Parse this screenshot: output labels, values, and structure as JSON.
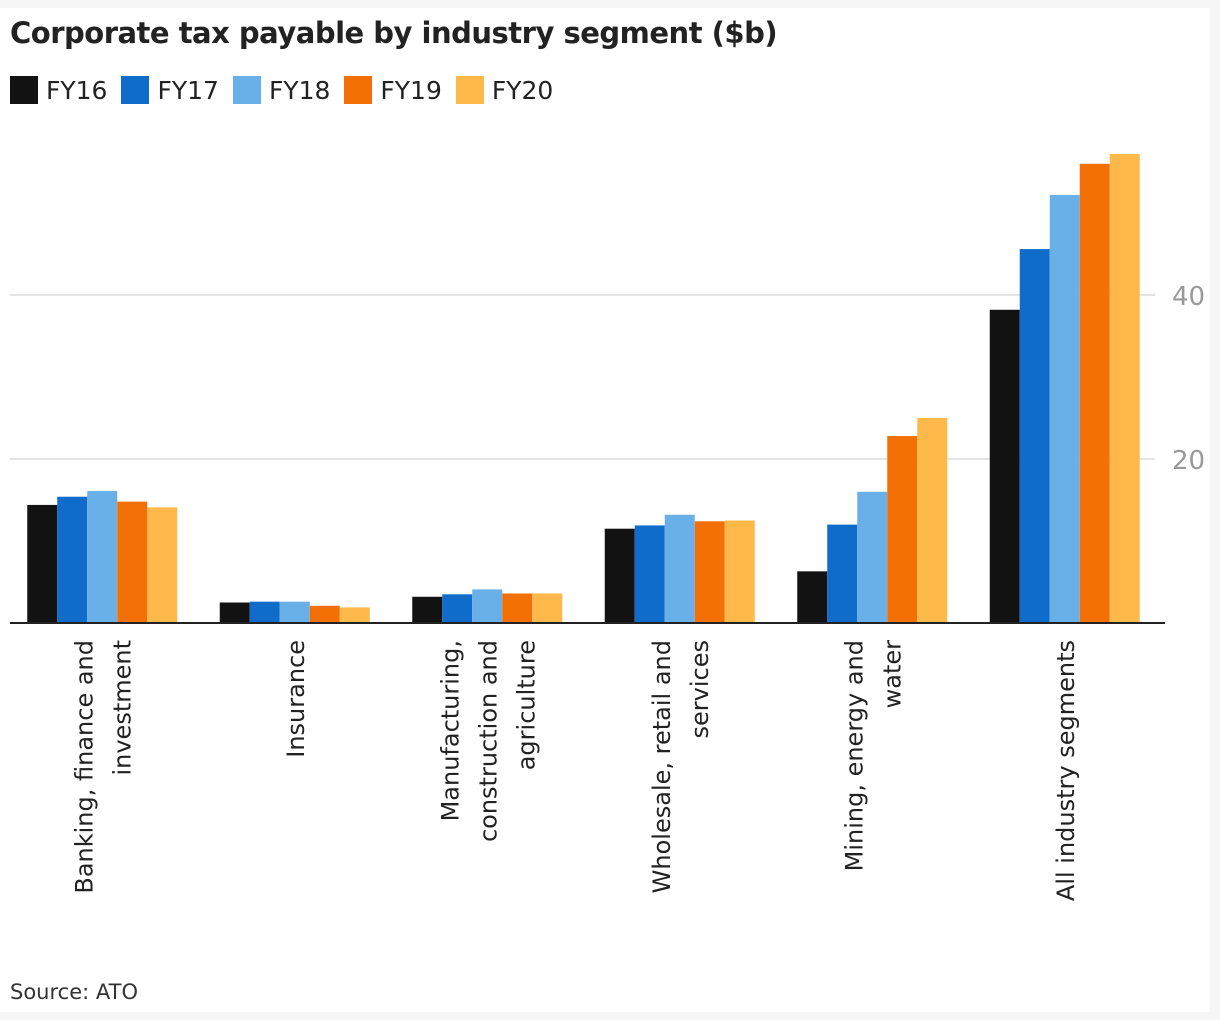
{
  "chart_data": {
    "type": "bar",
    "title": "Corporate tax payable by industry segment ($b)",
    "categories": [
      [
        "Banking, finance and",
        "investment"
      ],
      [
        "Insurance"
      ],
      [
        "Manufacturing,",
        "construction and",
        "agriculture"
      ],
      [
        "Wholesale, retail and",
        "services"
      ],
      [
        "Mining, energy and",
        "water"
      ],
      [
        "All industry segments"
      ]
    ],
    "series": [
      {
        "name": "FY16",
        "color": "#121212",
        "values": [
          14.4,
          2.5,
          3.2,
          11.5,
          6.3,
          38.2
        ]
      },
      {
        "name": "FY17",
        "color": "#0f6ccb",
        "values": [
          15.4,
          2.6,
          3.5,
          11.9,
          12.0,
          45.6
        ]
      },
      {
        "name": "FY18",
        "color": "#69b0e8",
        "values": [
          16.1,
          2.6,
          4.1,
          13.2,
          16.0,
          52.2
        ]
      },
      {
        "name": "FY19",
        "color": "#f27005",
        "values": [
          14.8,
          2.1,
          3.6,
          12.4,
          22.8,
          56.0
        ]
      },
      {
        "name": "FY20",
        "color": "#ffb84a",
        "values": [
          14.1,
          1.9,
          3.6,
          12.5,
          25.0,
          57.2
        ]
      }
    ],
    "yticks": [
      20,
      40
    ],
    "ylim": [
      0,
      60
    ],
    "grid": true,
    "legend": "top-left",
    "yaxis_side": "right"
  },
  "source": "Source: ATO"
}
